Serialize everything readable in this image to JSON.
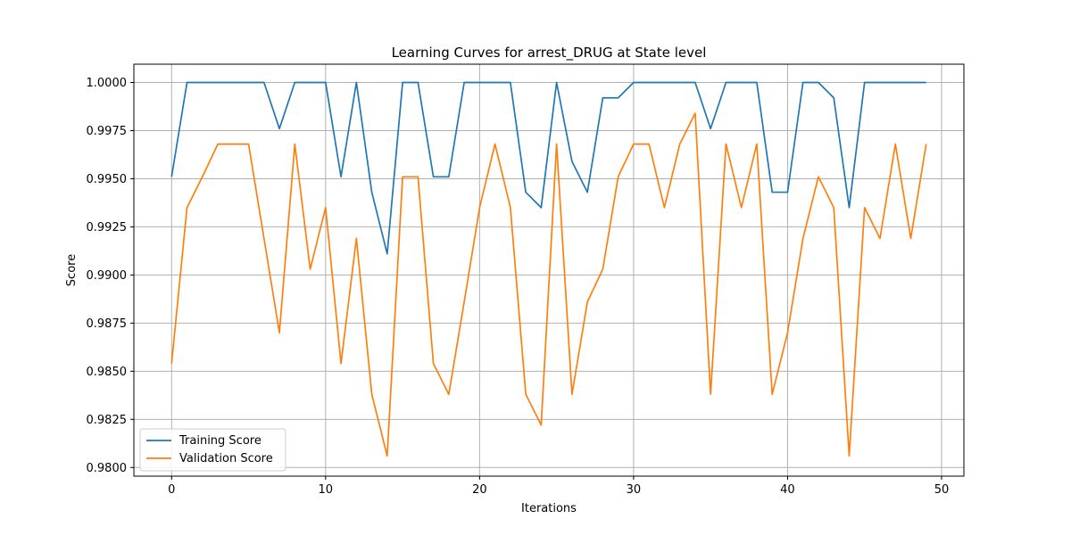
{
  "chart_data": {
    "type": "line",
    "title": "Learning Curves for arrest_DRUG at State level",
    "xlabel": "Iterations",
    "ylabel": "Score",
    "xlim": [
      -2.45,
      51.45
    ],
    "ylim": [
      0.97955,
      1.00095
    ],
    "xticks": [
      0,
      10,
      20,
      30,
      40,
      50
    ],
    "yticks": [
      0.98,
      0.9825,
      0.985,
      0.9875,
      0.99,
      0.9925,
      0.995,
      0.9975,
      1.0
    ],
    "grid": true,
    "legend_position": "lower-left",
    "x": [
      0,
      1,
      2,
      3,
      4,
      5,
      6,
      7,
      8,
      9,
      10,
      11,
      12,
      13,
      14,
      15,
      16,
      17,
      18,
      19,
      20,
      21,
      22,
      23,
      24,
      25,
      26,
      27,
      28,
      29,
      30,
      31,
      32,
      33,
      34,
      35,
      36,
      37,
      38,
      39,
      40,
      41,
      42,
      43,
      44,
      45,
      46,
      47,
      48,
      49
    ],
    "series": [
      {
        "name": "Training Score",
        "color": "#1f77b4",
        "values": [
          0.9951,
          1.0,
          1.0,
          1.0,
          1.0,
          1.0,
          1.0,
          0.9976,
          1.0,
          1.0,
          1.0,
          0.9951,
          1.0,
          0.9943,
          0.9911,
          1.0,
          1.0,
          0.9951,
          0.9951,
          1.0,
          1.0,
          1.0,
          1.0,
          0.9943,
          0.9935,
          1.0,
          0.9959,
          0.9943,
          0.9992,
          0.9992,
          1.0,
          1.0,
          1.0,
          1.0,
          1.0,
          0.9976,
          1.0,
          1.0,
          1.0,
          0.9943,
          0.9943,
          1.0,
          1.0,
          0.9992,
          0.9935,
          1.0,
          1.0,
          1.0,
          1.0,
          1.0
        ]
      },
      {
        "name": "Validation Score",
        "color": "#ff7f0e",
        "values": [
          0.9854,
          0.9935,
          0.9951,
          0.9968,
          0.9968,
          0.9968,
          0.9919,
          0.987,
          0.9968,
          0.9903,
          0.9935,
          0.9854,
          0.9919,
          0.9838,
          0.9806,
          0.9951,
          0.9951,
          0.9854,
          0.9838,
          0.9886,
          0.9935,
          0.9968,
          0.9935,
          0.9838,
          0.9822,
          0.9968,
          0.9838,
          0.9886,
          0.9903,
          0.9951,
          0.9968,
          0.9968,
          0.9935,
          0.9968,
          0.9984,
          0.9838,
          0.9968,
          0.9935,
          0.9968,
          0.9838,
          0.987,
          0.9919,
          0.9951,
          0.9935,
          0.9806,
          0.9935,
          0.9919,
          0.9968,
          0.9919,
          0.9968
        ]
      }
    ]
  }
}
